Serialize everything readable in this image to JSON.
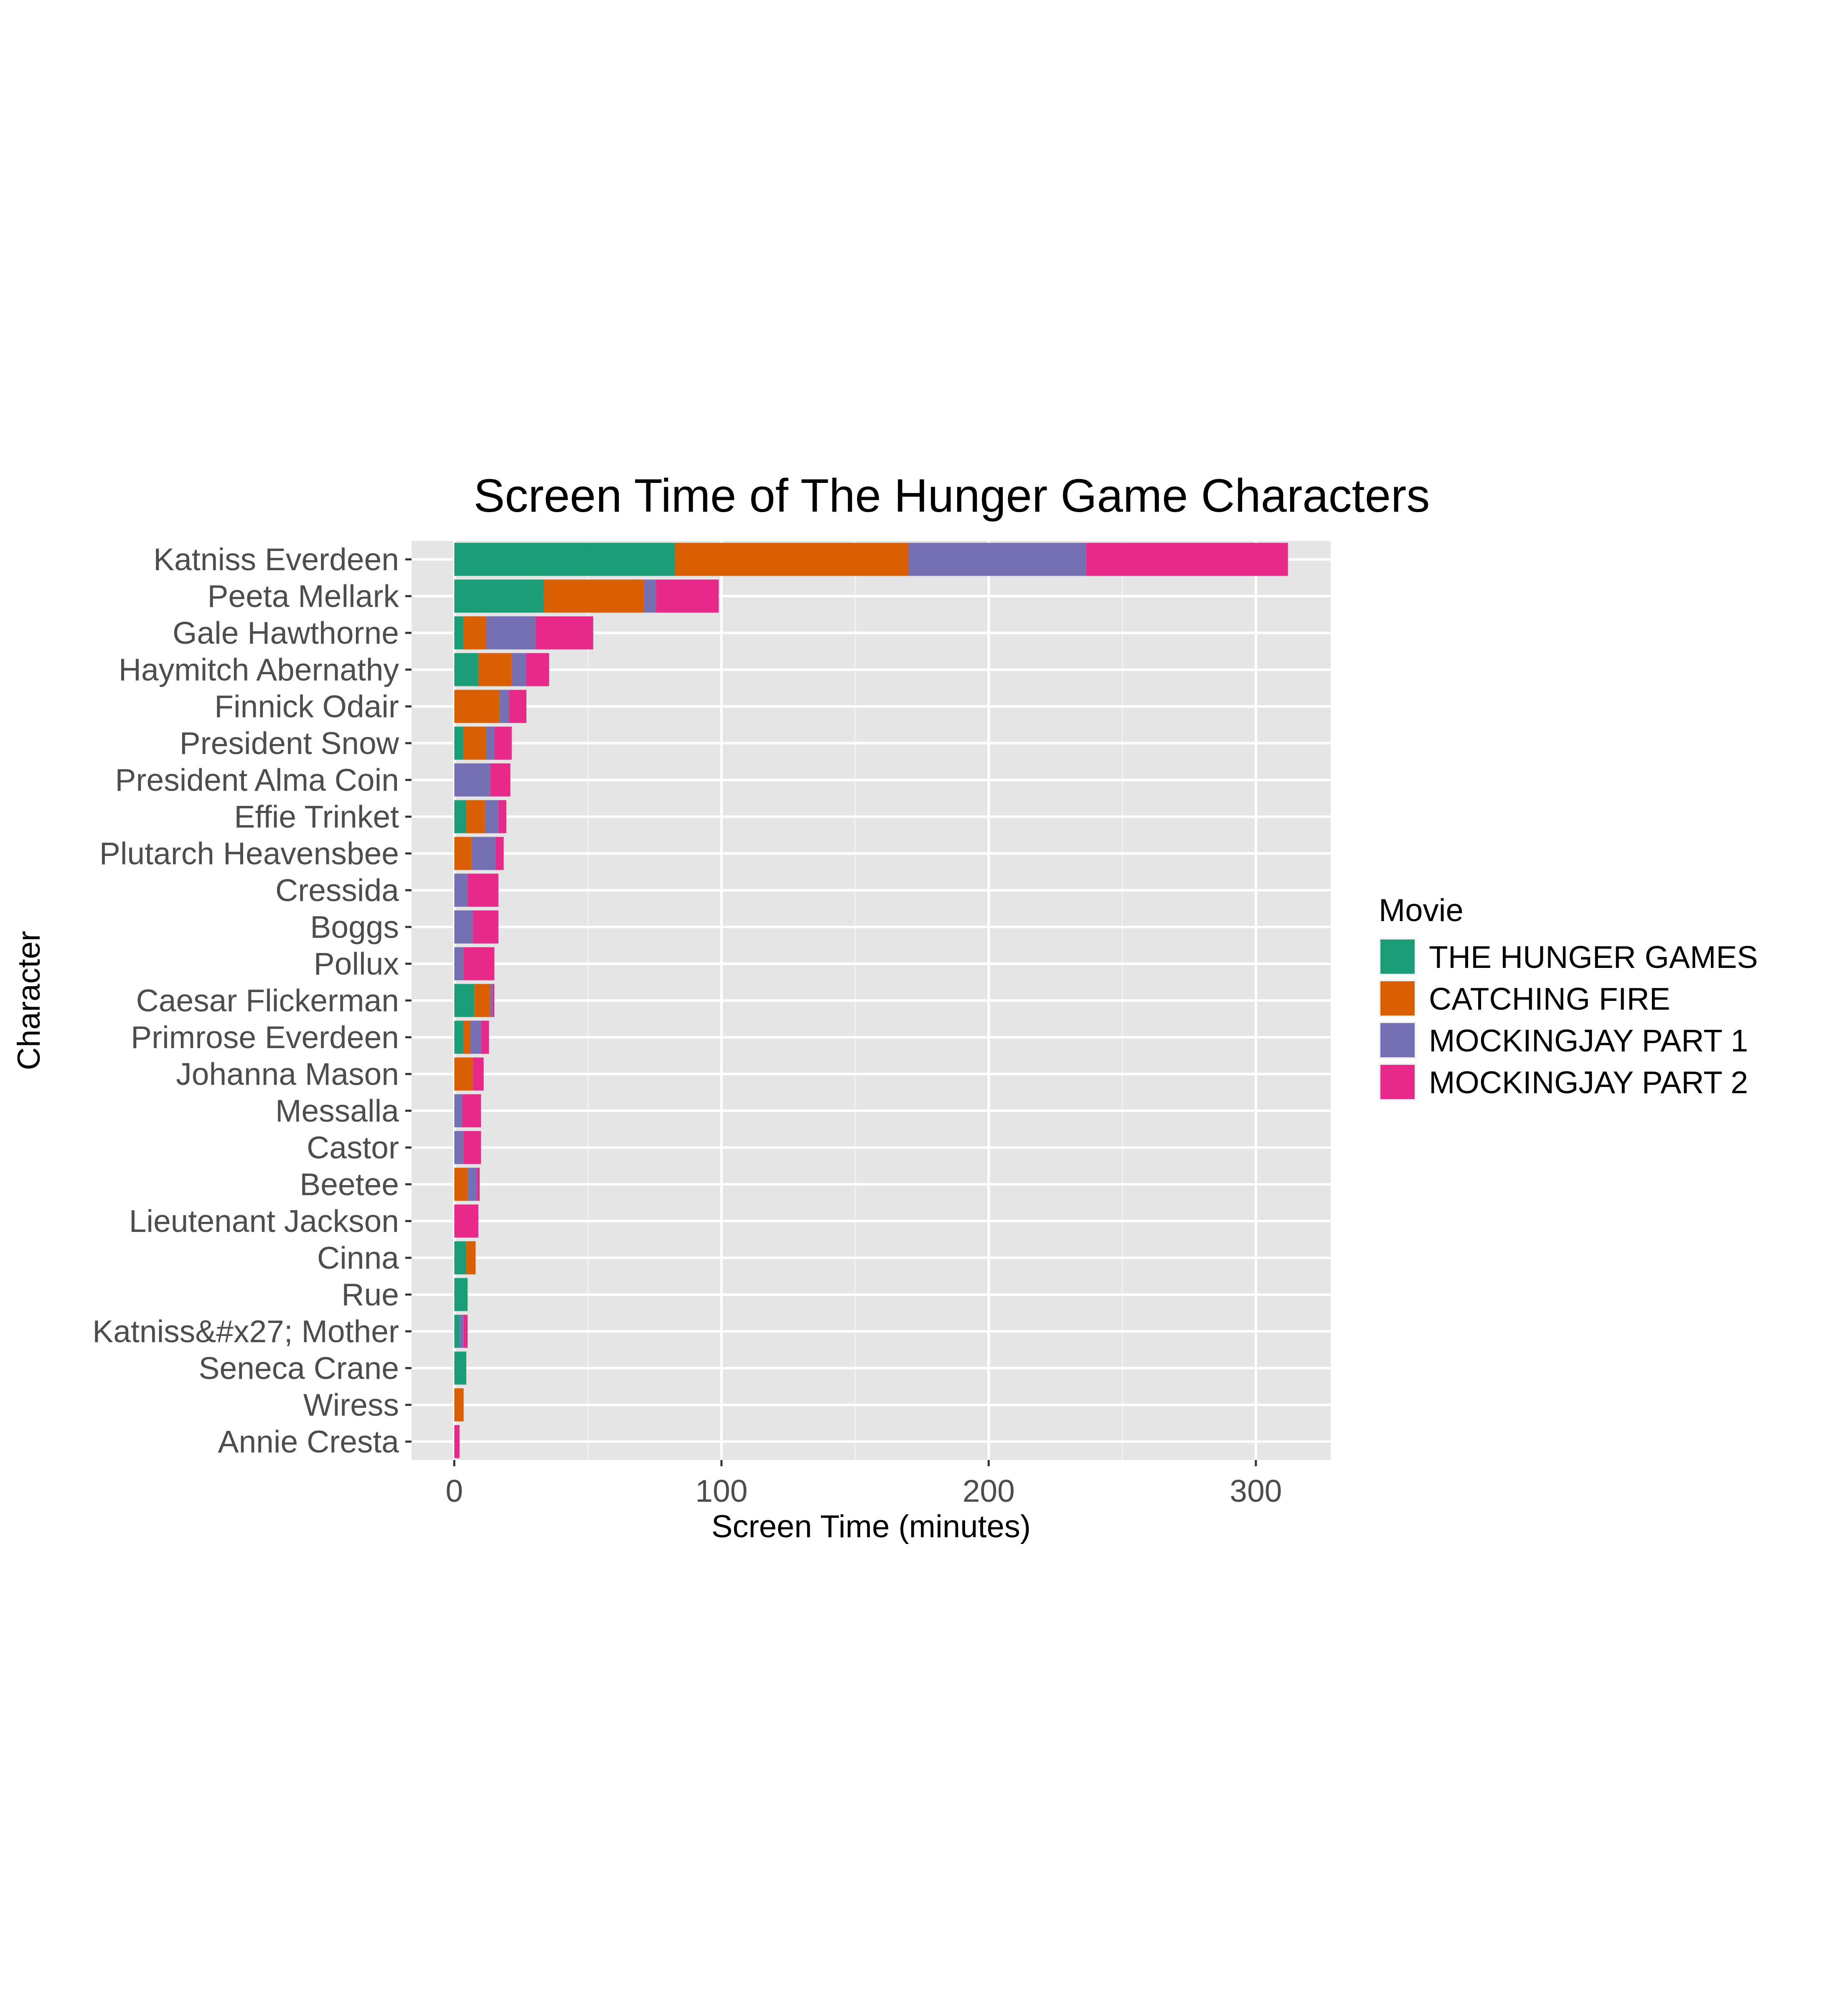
{
  "chart_data": {
    "type": "bar",
    "orientation": "horizontal",
    "stacked": true,
    "title": "Screen Time of The Hunger Game Characters",
    "xlabel": "Screen Time (minutes)",
    "ylabel": "Character",
    "xlim": [
      -16,
      328
    ],
    "xticks": [
      0,
      100,
      200,
      300
    ],
    "grid": true,
    "legend": {
      "title": "Movie",
      "position": "right"
    },
    "categories": [
      "Katniss Everdeen",
      "Peeta Mellark",
      "Gale Hawthorne",
      "Haymitch Abernathy",
      "Finnick Odair",
      "President Snow",
      "President Alma Coin",
      "Effie Trinket",
      "Plutarch Heavensbee",
      "Cressida",
      "Boggs",
      "Pollux",
      "Caesar Flickerman",
      "Primrose Everdeen",
      "Johanna Mason",
      "Messalla",
      "Castor",
      "Beetee",
      "Lieutenant Jackson",
      "Cinna",
      "Rue",
      "Katniss&#x27; Mother",
      "Seneca Crane",
      "Wiress",
      "Annie Cresta"
    ],
    "series": [
      {
        "name": "THE HUNGER GAMES",
        "color": "#1b9e77",
        "values": [
          82.5,
          33.5,
          3.5,
          9,
          0,
          3.5,
          0,
          4.5,
          0,
          0,
          0,
          0,
          7.5,
          3.5,
          0,
          0,
          0,
          0,
          0,
          4.5,
          5,
          2,
          4.5,
          0,
          0
        ]
      },
      {
        "name": "CATCHING FIRE",
        "color": "#d95f02",
        "values": [
          87.5,
          37.5,
          8.5,
          12.5,
          17,
          8.5,
          0,
          7,
          6.5,
          0,
          0,
          0,
          6,
          2.5,
          7,
          0,
          0,
          5,
          0,
          3.5,
          0,
          0,
          0,
          3.5,
          0
        ]
      },
      {
        "name": "MOCKINGJAY PART 1",
        "color": "#7570b3",
        "values": [
          66.5,
          4.5,
          18.5,
          5.5,
          3.5,
          3,
          13.5,
          5,
          9,
          5,
          7,
          3.5,
          1,
          4,
          0,
          3,
          3.5,
          3.5,
          0,
          0,
          0,
          1.5,
          0,
          0,
          0
        ]
      },
      {
        "name": "MOCKINGJAY PART 2",
        "color": "#e7298a",
        "values": [
          75.5,
          23.5,
          21.5,
          8.5,
          6.5,
          6.5,
          7.5,
          3,
          3,
          11.5,
          9.5,
          11.5,
          0.5,
          3,
          4,
          7,
          6.5,
          1,
          9,
          0,
          0,
          1.5,
          0,
          0,
          2
        ]
      }
    ]
  }
}
